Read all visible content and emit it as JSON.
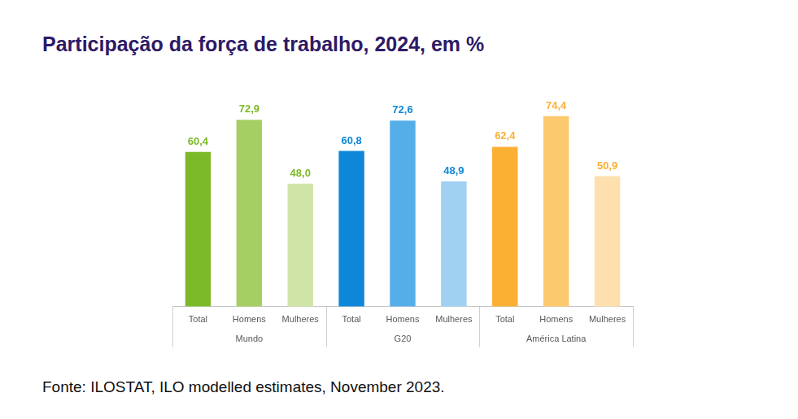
{
  "chart_data": {
    "type": "bar",
    "title": "Participação da força de trabalho, 2024, em %",
    "source": "Fonte: ILOSTAT, ILO modelled estimates, November 2023.",
    "groups": [
      "Mundo",
      "G20",
      "América Latina"
    ],
    "categories": [
      "Total",
      "Homens",
      "Mulheres",
      "Total",
      "Homens",
      "Mulheres",
      "Total",
      "Homens",
      "Mulheres"
    ],
    "values": [
      60.4,
      72.9,
      48.0,
      60.8,
      72.6,
      48.9,
      62.4,
      74.4,
      50.9
    ],
    "value_labels": [
      "60,4",
      "72,9",
      "48,0",
      "60,8",
      "72,6",
      "48,9",
      "62,4",
      "74,4",
      "50,9"
    ],
    "colors": [
      "#7cb927",
      "#a6cf63",
      "#d0e4a8",
      "#0e87d8",
      "#55aee8",
      "#a0d0f2",
      "#fbb034",
      "#fdc96f",
      "#fde0ad"
    ],
    "ylim": [
      0,
      80
    ],
    "data_labels": true,
    "tick_labels": "x",
    "grid": false
  }
}
